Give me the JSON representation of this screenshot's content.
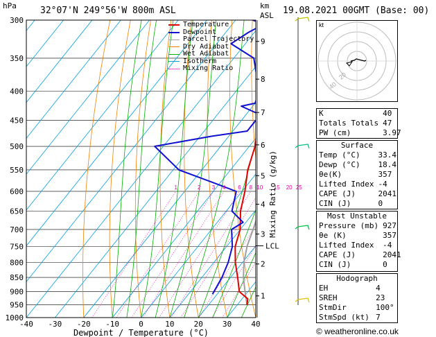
{
  "header": {
    "hpa_label": "hPa",
    "location": "32°07'N  249°56'W  800m  ASL",
    "km_label": "km",
    "asl_label": "ASL",
    "datetime": "19.08.2021  00GMT  (Base: 00)"
  },
  "legend": {
    "items": [
      {
        "label": "Temperature",
        "color": "#e00000"
      },
      {
        "label": "Dewpoint",
        "color": "#1010d0"
      },
      {
        "label": "Parcel Trajectory",
        "color": "#a0a0a0"
      },
      {
        "label": "Dry Adiabat",
        "color": "#f08000"
      },
      {
        "label": "Wet Adiabat",
        "color": "#00b000"
      },
      {
        "label": "Isotherm",
        "color": "#00a0e0"
      },
      {
        "label": "Mixing Ratio",
        "color": "#e000a0"
      }
    ]
  },
  "chart_data": {
    "type": "skew-t log-p",
    "xlabel": "Dewpoint / Temperature (°C)",
    "ylabel_right": "Mixing Ratio (g/kg)",
    "x_ticks": [
      -40,
      -30,
      -20,
      -10,
      0,
      10,
      20,
      30,
      40
    ],
    "p_ticks": [
      300,
      350,
      400,
      450,
      500,
      550,
      600,
      650,
      700,
      750,
      800,
      850,
      900,
      950,
      1000
    ],
    "km_ticks": [
      {
        "km": "1",
        "p": 916
      },
      {
        "km": "2",
        "p": 805
      },
      {
        "km": "3",
        "p": 713
      },
      {
        "km": "4",
        "p": 632
      },
      {
        "km": "5",
        "p": 563
      },
      {
        "km": "6",
        "p": 497
      },
      {
        "km": "7",
        "p": 436
      },
      {
        "km": "8",
        "p": 381
      },
      {
        "km": "9",
        "p": 327
      }
    ],
    "lcl": {
      "label": "LCL",
      "p": 748
    },
    "mixing_ratio_labels": [
      "1",
      "2",
      "3",
      "4",
      "6",
      "8",
      "10",
      "15",
      "20",
      "25"
    ],
    "temperature": [
      {
        "p": 950,
        "t": 33.4
      },
      {
        "p": 927,
        "t": 32
      },
      {
        "p": 900,
        "t": 27
      },
      {
        "p": 850,
        "t": 22.5
      },
      {
        "p": 800,
        "t": 17.5
      },
      {
        "p": 750,
        "t": 13
      },
      {
        "p": 700,
        "t": 10
      },
      {
        "p": 650,
        "t": 5
      },
      {
        "p": 600,
        "t": 1
      },
      {
        "p": 550,
        "t": -4
      },
      {
        "p": 500,
        "t": -8
      },
      {
        "p": 450,
        "t": -14
      },
      {
        "p": 400,
        "t": -20
      },
      {
        "p": 350,
        "t": -27
      },
      {
        "p": 300,
        "t": -37
      }
    ],
    "dewpoint": [
      {
        "p": 910,
        "t": 18.4
      },
      {
        "p": 850,
        "t": 17
      },
      {
        "p": 800,
        "t": 15
      },
      {
        "p": 750,
        "t": 12
      },
      {
        "p": 700,
        "t": 7
      },
      {
        "p": 680,
        "t": 9
      },
      {
        "p": 650,
        "t": 2
      },
      {
        "p": 600,
        "t": -2
      },
      {
        "p": 580,
        "t": -12
      },
      {
        "p": 550,
        "t": -28
      },
      {
        "p": 500,
        "t": -43
      },
      {
        "p": 480,
        "t": -26
      },
      {
        "p": 470,
        "t": -15
      },
      {
        "p": 440,
        "t": -15
      },
      {
        "p": 425,
        "t": -24
      },
      {
        "p": 420,
        "t": -20
      },
      {
        "p": 400,
        "t": -22
      },
      {
        "p": 350,
        "t": -33
      },
      {
        "p": 330,
        "t": -45
      },
      {
        "p": 315,
        "t": -42
      },
      {
        "p": 305,
        "t": -39
      },
      {
        "p": 300,
        "t": -44
      }
    ],
    "parcel": [
      {
        "p": 950,
        "t": 33.4
      },
      {
        "p": 900,
        "t": 29
      },
      {
        "p": 850,
        "t": 24.5
      },
      {
        "p": 800,
        "t": 20.5
      },
      {
        "p": 748,
        "t": 17
      },
      {
        "p": 700,
        "t": 14.5
      },
      {
        "p": 650,
        "t": 11.5
      },
      {
        "p": 600,
        "t": 8
      },
      {
        "p": 550,
        "t": 4
      },
      {
        "p": 500,
        "t": -0.5
      },
      {
        "p": 450,
        "t": -5.5
      },
      {
        "p": 400,
        "t": -11.5
      },
      {
        "p": 350,
        "t": -19
      },
      {
        "p": 300,
        "t": -28
      }
    ]
  },
  "indices": {
    "rows": [
      {
        "label": "K",
        "value": "40"
      },
      {
        "label": "Totals Totals",
        "value": "47"
      },
      {
        "label": "PW (cm)",
        "value": "3.97"
      }
    ]
  },
  "surface": {
    "title": "Surface",
    "rows": [
      {
        "label": "Temp (°C)",
        "value": "33.4"
      },
      {
        "label": "Dewp (°C)",
        "value": "18.4"
      },
      {
        "label": "θe(K)",
        "value": "357"
      },
      {
        "label": "Lifted Index",
        "value": "-4"
      },
      {
        "label": "CAPE (J)",
        "value": "2041"
      },
      {
        "label": "CIN (J)",
        "value": "0"
      }
    ]
  },
  "unstable": {
    "title": "Most Unstable",
    "rows": [
      {
        "label": "Pressure (mb)",
        "value": "927"
      },
      {
        "label": "θe (K)",
        "value": "357"
      },
      {
        "label": "Lifted Index",
        "value": "-4"
      },
      {
        "label": "CAPE (J)",
        "value": "2041"
      },
      {
        "label": "CIN (J)",
        "value": "0"
      }
    ]
  },
  "hodograph": {
    "title": "Hodograph",
    "label": "kt",
    "ring_labels": [
      "20",
      "40"
    ],
    "rows": [
      {
        "label": "EH",
        "value": "4"
      },
      {
        "label": "SREH",
        "value": "23"
      },
      {
        "label": "StmDir",
        "value": "100°"
      },
      {
        "label": "StmSpd (kt)",
        "value": "7"
      }
    ]
  },
  "copyright": "© weatheronline.co.uk"
}
